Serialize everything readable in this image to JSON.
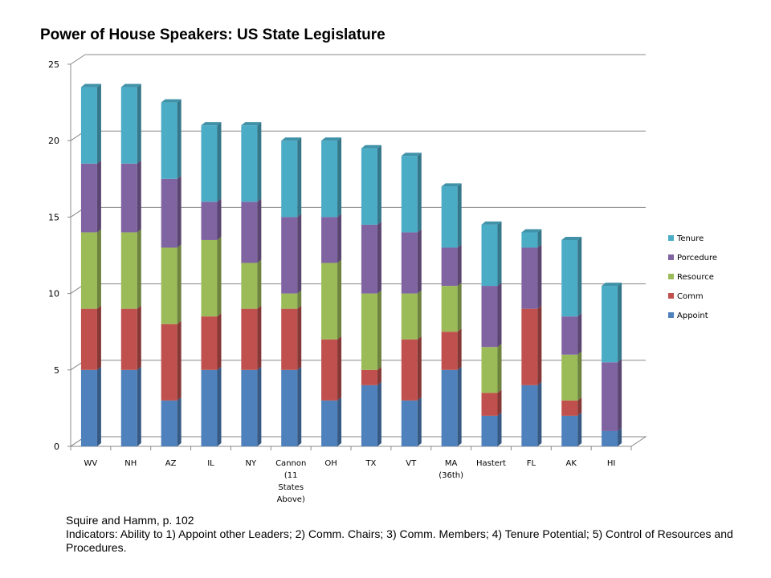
{
  "title": "Power of House Speakers: US State Legislature",
  "caption": {
    "source": "Squire and Hamm, p. 102",
    "note": "Indicators: Ability to 1) Appoint other Leaders; 2) Comm. Chairs; 3) Comm. Members; 4) Tenure Potential; 5) Control of Resources and Procedures."
  },
  "chart_data": {
    "type": "bar",
    "stacked": true,
    "title": "Power of House Speakers: US State Legislature",
    "xlabel": "",
    "ylabel": "",
    "ylim": [
      0,
      25
    ],
    "yticks": [
      0,
      5,
      10,
      15,
      20,
      25
    ],
    "grid": true,
    "legend_position": "right",
    "categories": [
      [
        "WV"
      ],
      [
        "NH"
      ],
      [
        "AZ"
      ],
      [
        "IL"
      ],
      [
        "NY"
      ],
      [
        "Cannon",
        "(11",
        "States",
        "Above)"
      ],
      [
        "OH"
      ],
      [
        "TX"
      ],
      [
        "VT"
      ],
      [
        "MA",
        "(36th)"
      ],
      [
        "Hastert"
      ],
      [
        "FL"
      ],
      [
        "AK"
      ],
      [
        "HI"
      ]
    ],
    "series": [
      {
        "name": "Appoint",
        "color": "#4F81BD",
        "values": [
          5,
          5,
          3,
          5,
          5,
          5,
          3,
          4,
          3,
          5,
          2,
          4,
          2,
          1
        ]
      },
      {
        "name": "Comm",
        "color": "#C0504D",
        "values": [
          4,
          4,
          5,
          3.5,
          4,
          4,
          4,
          1,
          4,
          2.5,
          1.5,
          5,
          1,
          0
        ]
      },
      {
        "name": "Resource",
        "color": "#9BBB59",
        "values": [
          5,
          5,
          5,
          5,
          3,
          1,
          5,
          5,
          3,
          3,
          3,
          0,
          3,
          0
        ]
      },
      {
        "name": "Porcedure",
        "color": "#8064A2",
        "values": [
          4.5,
          4.5,
          4.5,
          2.5,
          4,
          5,
          3,
          4.5,
          4,
          2.5,
          4,
          4,
          2.5,
          4.5
        ]
      },
      {
        "name": "Tenure",
        "color": "#4BACC6",
        "values": [
          5,
          5,
          5,
          5,
          5,
          5,
          5,
          5,
          5,
          4,
          4,
          1,
          5,
          5
        ]
      }
    ]
  }
}
